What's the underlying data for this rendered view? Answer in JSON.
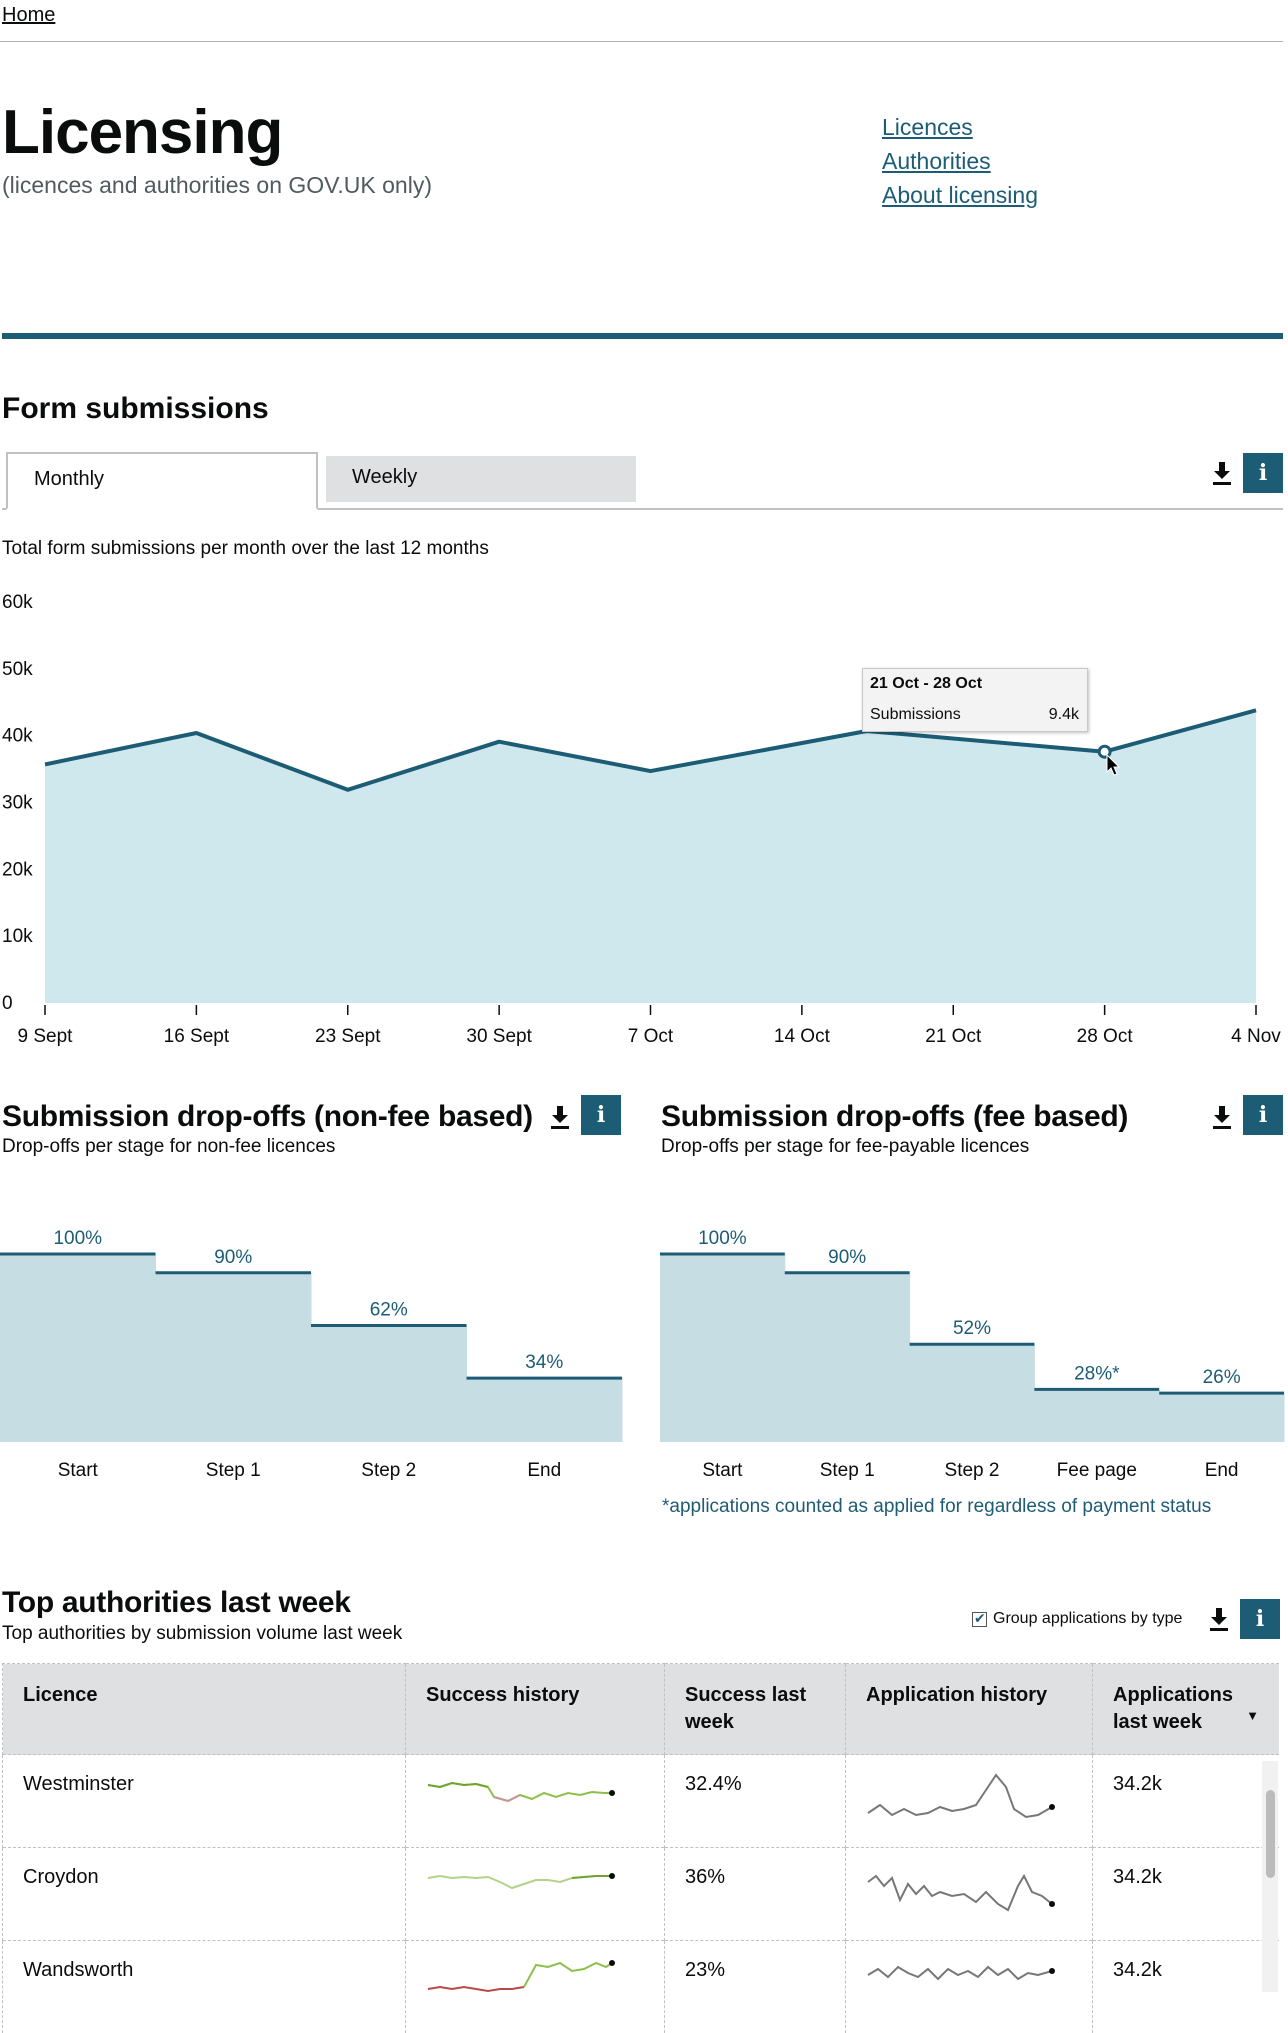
{
  "breadcrumb": {
    "home": "Home"
  },
  "header": {
    "title": "Licensing",
    "subtitle": "(licences and authorities on GOV.UK only)",
    "nav": [
      "Licences",
      "Authorities",
      "About licensing"
    ]
  },
  "form_submissions": {
    "heading": "Form submissions",
    "tabs": {
      "active": "Monthly",
      "inactive": "Weekly"
    },
    "description": "Total form submissions per month over the last 12 months",
    "tooltip": {
      "title": "21 Oct - 28 Oct",
      "label": "Submissions",
      "value": "9.4k"
    }
  },
  "dropoffs_non_fee": {
    "heading": "Submission drop-offs (non-fee based)",
    "description": "Drop-offs per stage for non-fee licences"
  },
  "dropoffs_fee": {
    "heading": "Submission drop-offs (fee based)",
    "description": "Drop-offs per stage for fee-payable licences",
    "footnote": "*applications counted as applied for regardless of payment status"
  },
  "top_authorities": {
    "heading": "Top authorities last week",
    "description": "Top authorities by submission volume last week",
    "checkbox_label": "Group applications by type",
    "checkbox_checked": true,
    "columns": [
      "Licence",
      "Success history",
      "Success last week",
      "Application history",
      "Applications last week"
    ],
    "rows": [
      {
        "licence": "Westminster",
        "success": "32.4%",
        "applications": "34.2k"
      },
      {
        "licence": "Croydon",
        "success": "36%",
        "applications": "34.2k"
      },
      {
        "licence": "Wandsworth",
        "success": "23%",
        "applications": "34.2k"
      }
    ]
  },
  "icons": {
    "download": "download-icon",
    "info": "info-icon",
    "sort": "sort-descending-icon"
  },
  "colors": {
    "accent": "#1d5c75",
    "area_fill": "#cfe8ee",
    "funnel_fill": "#c6dde4",
    "spark_green": "#6fa52e",
    "spark_red": "#b94a48"
  },
  "chart_data": [
    {
      "type": "area",
      "x": [
        "9 Sept",
        "16 Sept",
        "23 Sept",
        "30 Sept",
        "7 Oct",
        "14 Oct",
        "21 Oct",
        "28 Oct",
        "4 Nov"
      ],
      "y_tick_labels": [
        "0",
        "10k",
        "20k",
        "30k",
        "40k",
        "50k",
        "60k"
      ],
      "ylim": [
        0,
        60000
      ],
      "series": [
        {
          "points": [
            [
              "9 Sept",
              35700
            ],
            [
              "16 Sept",
              40400
            ],
            [
              "23 Sept",
              31900
            ],
            [
              "30 Sept",
              39100
            ],
            [
              "7 Oct",
              34700
            ],
            [
              "17 Oct",
              40700
            ],
            [
              "28 Oct",
              37600
            ],
            [
              "4 Nov",
              43800
            ]
          ]
        }
      ],
      "highlight": {
        "x": "28 Oct",
        "value": 37600
      },
      "grid": false
    },
    {
      "type": "bar",
      "categories": [
        "Start",
        "Step 1",
        "Step 2",
        "End"
      ],
      "values": [
        100,
        90,
        62,
        34
      ],
      "labels": [
        "100%",
        "90%",
        "62%",
        "34%"
      ],
      "ylim": [
        0,
        100
      ]
    },
    {
      "type": "bar",
      "categories": [
        "Start",
        "Step 1",
        "Step 2",
        "Fee page",
        "End"
      ],
      "values": [
        100,
        90,
        52,
        28,
        26
      ],
      "labels": [
        "100%",
        "90%",
        "52%",
        "28%*",
        "26%"
      ],
      "ylim": [
        0,
        100
      ]
    }
  ]
}
